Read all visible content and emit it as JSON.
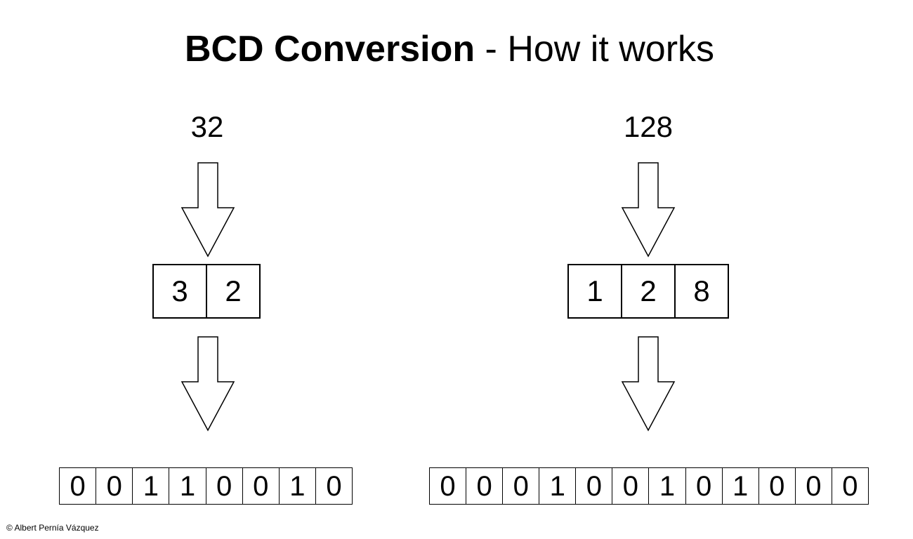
{
  "title": {
    "bold": "BCD Conversion",
    "rest": " - How it works"
  },
  "left": {
    "number": "32",
    "digits": [
      "3",
      "2"
    ],
    "bits": [
      "0",
      "0",
      "1",
      "1",
      "0",
      "0",
      "1",
      "0"
    ]
  },
  "right": {
    "number": "128",
    "digits": [
      "1",
      "2",
      "8"
    ],
    "bits": [
      "0",
      "0",
      "0",
      "1",
      "0",
      "0",
      "1",
      "0",
      "1",
      "0",
      "0",
      "0"
    ]
  },
  "credit": "© Albert Pernía Vázquez"
}
